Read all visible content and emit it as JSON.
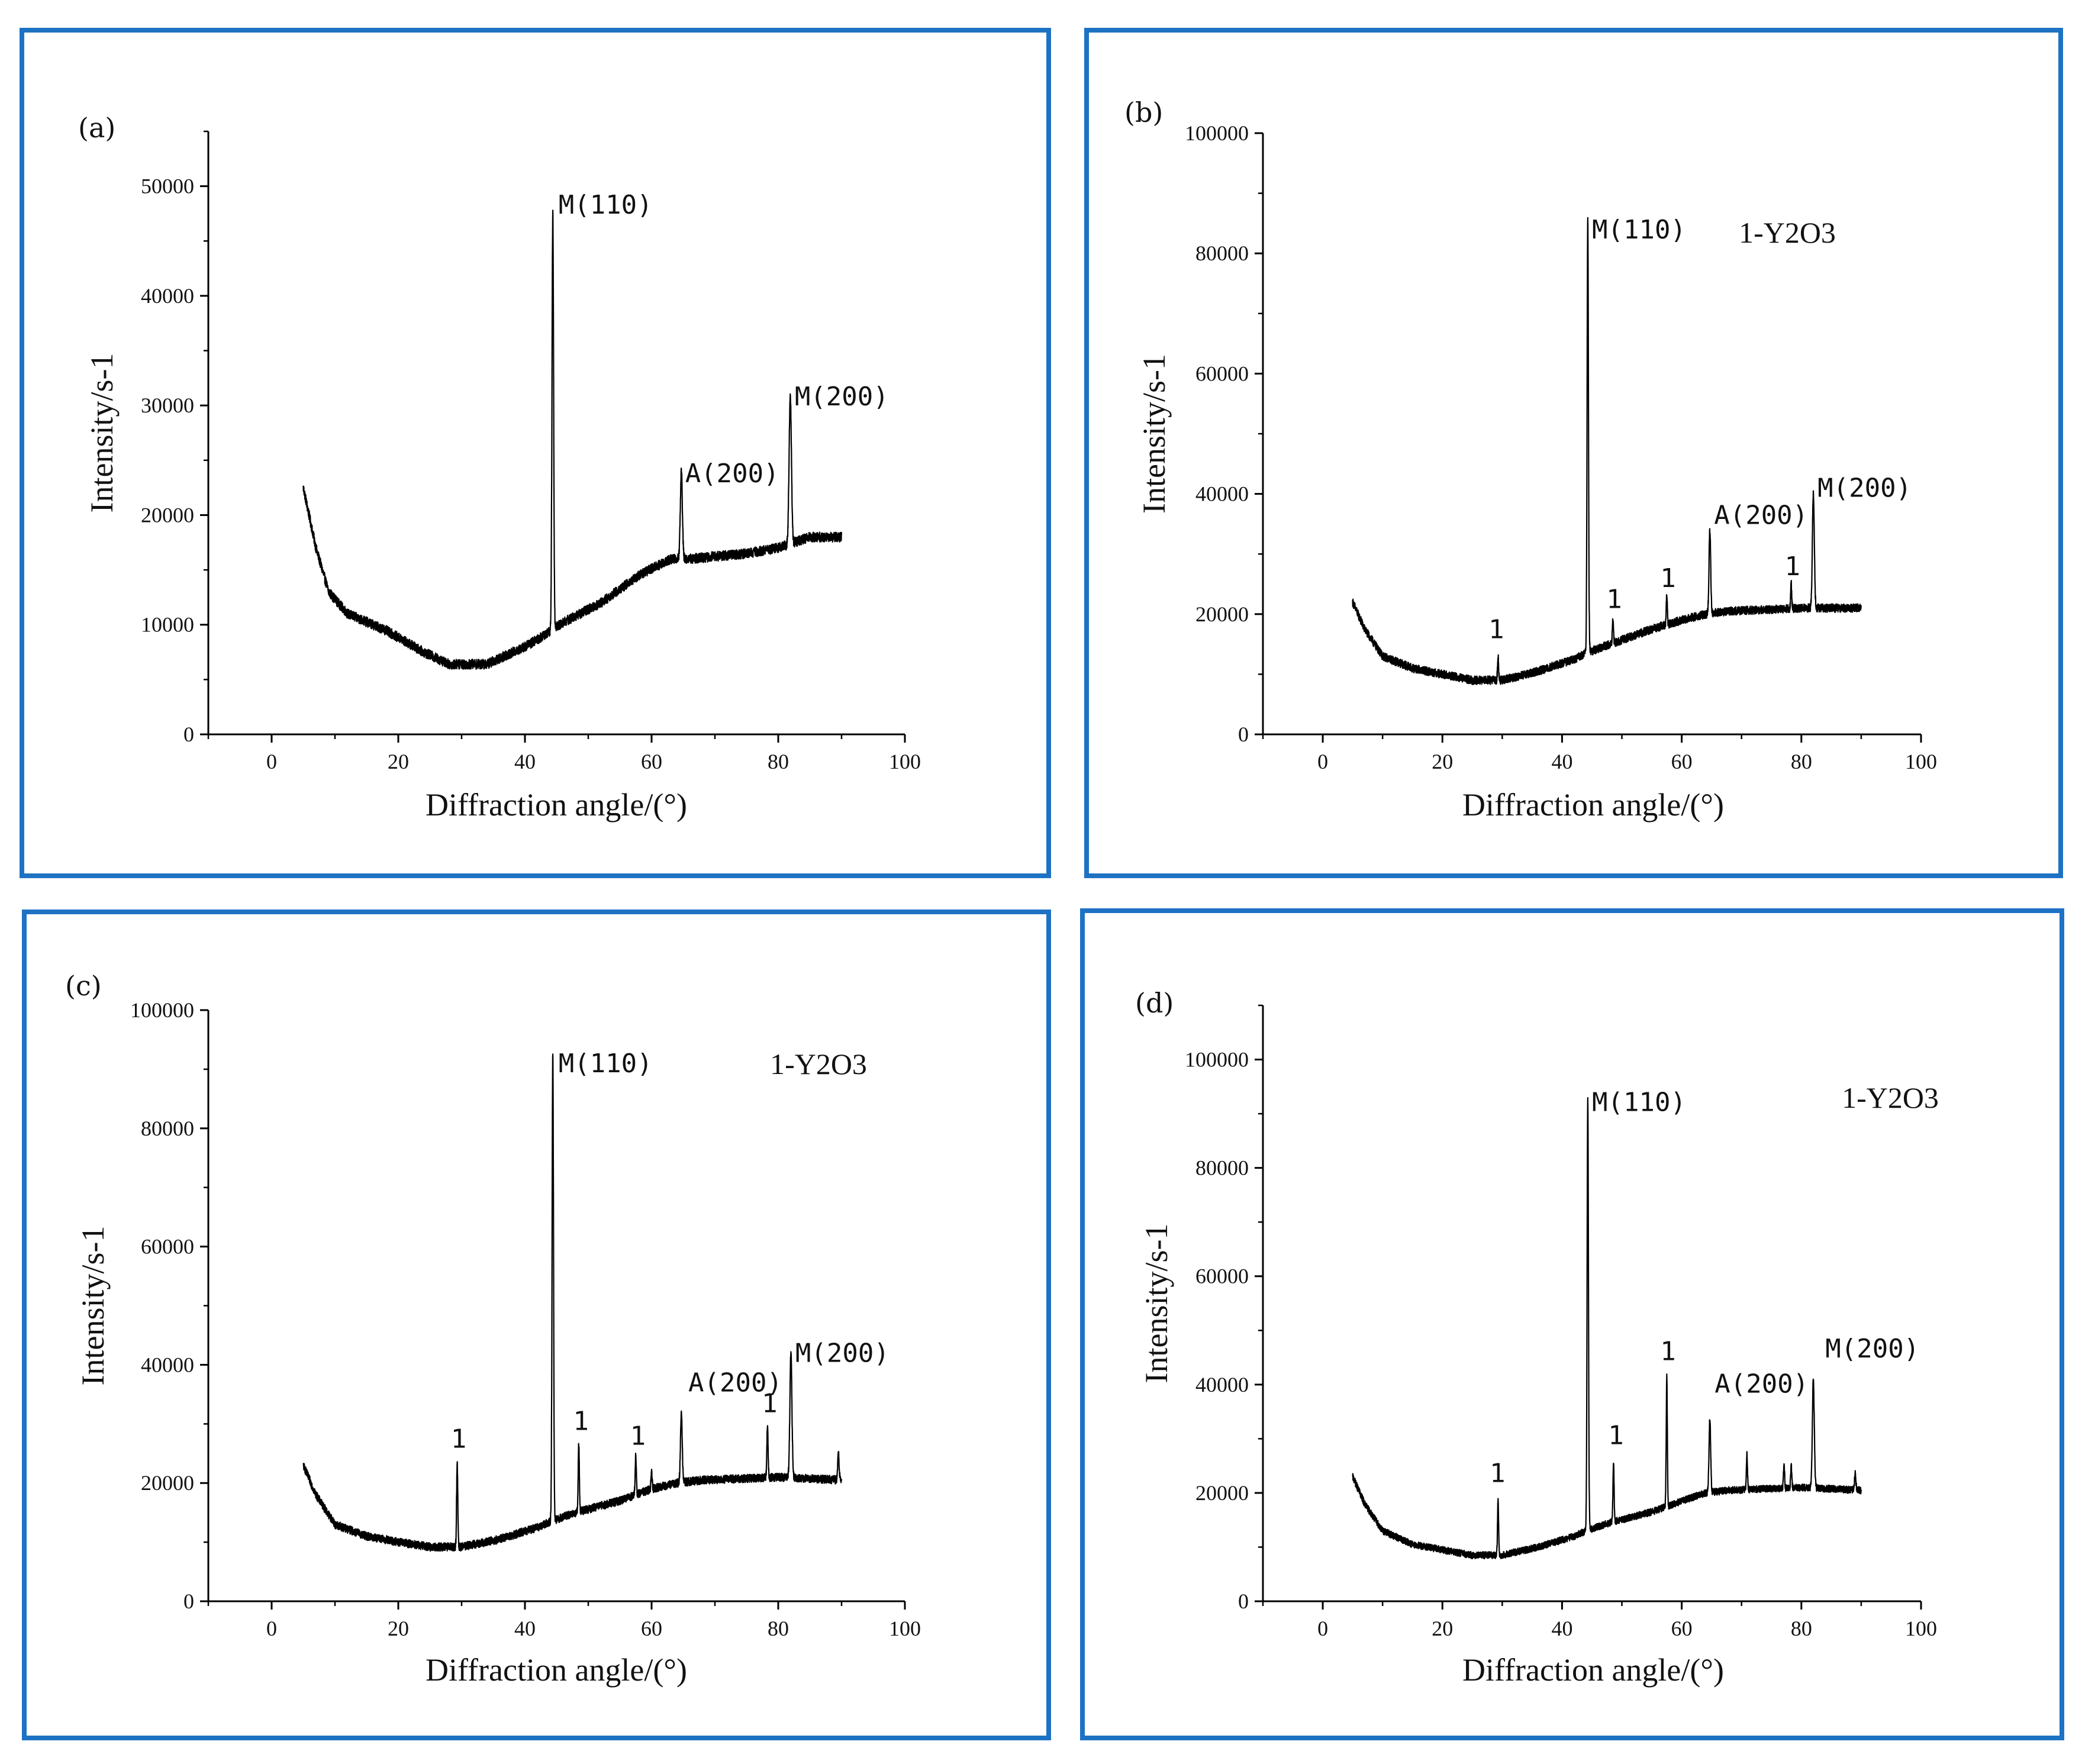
{
  "chart_data": [
    {
      "panel": "(a)",
      "type": "line",
      "xlabel": "Diffraction angle/(°)",
      "ylabel": "Intensity/s-1",
      "xlim": [
        -10,
        100
      ],
      "ylim": [
        0,
        55000
      ],
      "xticks": [
        "0",
        "20",
        "40",
        "60",
        "80",
        "100"
      ],
      "yticks": [
        "0",
        "10000",
        "20000",
        "30000",
        "40000",
        "50000"
      ],
      "legend": "",
      "x_range": [
        5,
        90
      ],
      "noise": 450,
      "baseline": [
        [
          5,
          22500
        ],
        [
          7,
          17000
        ],
        [
          9,
          13000
        ],
        [
          12,
          11000
        ],
        [
          18,
          9500
        ],
        [
          24,
          7500
        ],
        [
          28,
          6400
        ],
        [
          34,
          6400
        ],
        [
          40,
          8000
        ],
        [
          43,
          9000
        ],
        [
          46,
          10200
        ],
        [
          52,
          12000
        ],
        [
          58,
          14500
        ],
        [
          63,
          16000
        ],
        [
          66,
          16000
        ],
        [
          75,
          16500
        ],
        [
          80,
          17000
        ],
        [
          85,
          18000
        ],
        [
          90,
          18000
        ]
      ],
      "peaks": [
        {
          "x": 44.4,
          "y": 47500,
          "w": 0.28
        },
        {
          "x": 64.7,
          "y": 24000,
          "w": 0.35
        },
        {
          "x": 81.9,
          "y": 31000,
          "w": 0.4
        }
      ],
      "annotations": [
        {
          "text": "M(110)",
          "x": 45.3,
          "y": 47500
        },
        {
          "text": "A(200)",
          "x": 65.3,
          "y": 23000
        },
        {
          "text": "M(200)",
          "x": 82.6,
          "y": 30000
        }
      ]
    },
    {
      "panel": "(b)",
      "type": "line",
      "xlabel": "Diffraction angle/(°)",
      "ylabel": "Intensity/s-1",
      "xlim": [
        -10,
        100
      ],
      "ylim": [
        0,
        100000
      ],
      "xticks": [
        "0",
        "20",
        "40",
        "60",
        "80",
        "100"
      ],
      "yticks": [
        "0",
        "20000",
        "40000",
        "60000",
        "80000",
        "100000"
      ],
      "legend": "1-Y2O3",
      "x_range": [
        5,
        90
      ],
      "noise": 700,
      "baseline": [
        [
          5,
          22000
        ],
        [
          7,
          17500
        ],
        [
          10,
          13000
        ],
        [
          15,
          11000
        ],
        [
          20,
          10000
        ],
        [
          25,
          9000
        ],
        [
          30,
          9000
        ],
        [
          36,
          10500
        ],
        [
          42,
          12500
        ],
        [
          44,
          13500
        ],
        [
          48,
          15000
        ],
        [
          55,
          17500
        ],
        [
          60,
          19000
        ],
        [
          64,
          20000
        ],
        [
          68,
          20500
        ],
        [
          80,
          21000
        ],
        [
          90,
          21000
        ]
      ],
      "peaks": [
        {
          "x": 29.3,
          "y": 13000,
          "w": 0.2
        },
        {
          "x": 44.3,
          "y": 86000,
          "w": 0.25
        },
        {
          "x": 48.5,
          "y": 19000,
          "w": 0.2
        },
        {
          "x": 57.5,
          "y": 23000,
          "w": 0.2
        },
        {
          "x": 64.7,
          "y": 34000,
          "w": 0.3
        },
        {
          "x": 78.3,
          "y": 25000,
          "w": 0.2
        },
        {
          "x": 82.0,
          "y": 40000,
          "w": 0.35
        }
      ],
      "annotations": [
        {
          "text": "M(110)",
          "x": 45.0,
          "y": 82500
        },
        {
          "text": "A(200)",
          "x": 65.4,
          "y": 35000
        },
        {
          "text": "M(200)",
          "x": 82.7,
          "y": 39500
        },
        {
          "text": "1",
          "x": 27.7,
          "y": 16000
        },
        {
          "text": "1",
          "x": 47.4,
          "y": 21000
        },
        {
          "text": "1",
          "x": 56.4,
          "y": 24500
        },
        {
          "text": "1",
          "x": 77.2,
          "y": 26500
        }
      ]
    },
    {
      "panel": "(c)",
      "type": "line",
      "xlabel": "Diffraction angle/(°)",
      "ylabel": "Intensity/s-1",
      "xlim": [
        -10,
        100
      ],
      "ylim": [
        0,
        100000
      ],
      "xticks": [
        "0",
        "20",
        "40",
        "60",
        "80",
        "100"
      ],
      "yticks": [
        "0",
        "20000",
        "40000",
        "60000",
        "80000",
        "100000"
      ],
      "legend": "1-Y2O3",
      "x_range": [
        5,
        90
      ],
      "noise": 700,
      "baseline": [
        [
          5,
          23000
        ],
        [
          7,
          18000
        ],
        [
          10,
          13000
        ],
        [
          15,
          11000
        ],
        [
          20,
          10000
        ],
        [
          25,
          9200
        ],
        [
          30,
          9200
        ],
        [
          36,
          10500
        ],
        [
          42,
          12500
        ],
        [
          44,
          13500
        ],
        [
          48,
          15000
        ],
        [
          55,
          17000
        ],
        [
          60,
          19000
        ],
        [
          64,
          20000
        ],
        [
          68,
          20500
        ],
        [
          80,
          21000
        ],
        [
          90,
          20500
        ]
      ],
      "peaks": [
        {
          "x": 29.3,
          "y": 23500,
          "w": 0.2
        },
        {
          "x": 44.4,
          "y": 93000,
          "w": 0.25
        },
        {
          "x": 48.5,
          "y": 26500,
          "w": 0.2
        },
        {
          "x": 57.5,
          "y": 24500,
          "w": 0.2
        },
        {
          "x": 60.0,
          "y": 22000,
          "w": 0.2
        },
        {
          "x": 64.7,
          "y": 32000,
          "w": 0.3
        },
        {
          "x": 78.3,
          "y": 30000,
          "w": 0.2
        },
        {
          "x": 82.0,
          "y": 42000,
          "w": 0.35
        },
        {
          "x": 89.5,
          "y": 25000,
          "w": 0.25
        }
      ],
      "annotations": [
        {
          "text": "M(110)",
          "x": 45.3,
          "y": 89500
        },
        {
          "text": "A(200)",
          "x": 65.8,
          "y": 35500
        },
        {
          "text": "M(200)",
          "x": 82.7,
          "y": 40500
        },
        {
          "text": "1",
          "x": 28.3,
          "y": 26000
        },
        {
          "text": "1",
          "x": 47.6,
          "y": 29000
        },
        {
          "text": "1",
          "x": 56.6,
          "y": 26500
        },
        {
          "text": "1",
          "x": 77.4,
          "y": 32000
        }
      ]
    },
    {
      "panel": "(d)",
      "type": "line",
      "xlabel": "Diffraction angle/(°)",
      "ylabel": "Intensity/s-1",
      "xlim": [
        -10,
        100
      ],
      "ylim": [
        0,
        110000
      ],
      "xticks": [
        "0",
        "20",
        "40",
        "60",
        "80",
        "100"
      ],
      "yticks": [
        "0",
        "20000",
        "40000",
        "60000",
        "80000",
        "100000"
      ],
      "legend": "1-Y2O3",
      "x_range": [
        5,
        90
      ],
      "noise": 650,
      "baseline": [
        [
          5,
          23000
        ],
        [
          7,
          18000
        ],
        [
          10,
          13000
        ],
        [
          15,
          10500
        ],
        [
          20,
          9500
        ],
        [
          25,
          8500
        ],
        [
          30,
          8500
        ],
        [
          36,
          10000
        ],
        [
          42,
          12000
        ],
        [
          44,
          13000
        ],
        [
          48,
          14500
        ],
        [
          55,
          16500
        ],
        [
          60,
          18500
        ],
        [
          64,
          20000
        ],
        [
          68,
          20500
        ],
        [
          80,
          21000
        ],
        [
          90,
          20500
        ]
      ],
      "peaks": [
        {
          "x": 29.3,
          "y": 18500,
          "w": 0.2
        },
        {
          "x": 44.3,
          "y": 93000,
          "w": 0.25
        },
        {
          "x": 48.6,
          "y": 26000,
          "w": 0.2
        },
        {
          "x": 57.5,
          "y": 41500,
          "w": 0.2
        },
        {
          "x": 64.7,
          "y": 33500,
          "w": 0.3
        },
        {
          "x": 70.9,
          "y": 27000,
          "w": 0.2
        },
        {
          "x": 77.1,
          "y": 25500,
          "w": 0.2
        },
        {
          "x": 78.3,
          "y": 25000,
          "w": 0.2
        },
        {
          "x": 82.0,
          "y": 41000,
          "w": 0.35
        },
        {
          "x": 89.0,
          "y": 23500,
          "w": 0.25
        }
      ],
      "annotations": [
        {
          "text": "M(110)",
          "x": 45.0,
          "y": 90500
        },
        {
          "text": "A(200)",
          "x": 65.5,
          "y": 38500
        },
        {
          "text": "M(200)",
          "x": 84.0,
          "y": 45000
        },
        {
          "text": "1",
          "x": 56.4,
          "y": 44500
        },
        {
          "text": "1",
          "x": 27.9,
          "y": 22000
        },
        {
          "text": "1",
          "x": 47.7,
          "y": 29000
        }
      ]
    }
  ]
}
